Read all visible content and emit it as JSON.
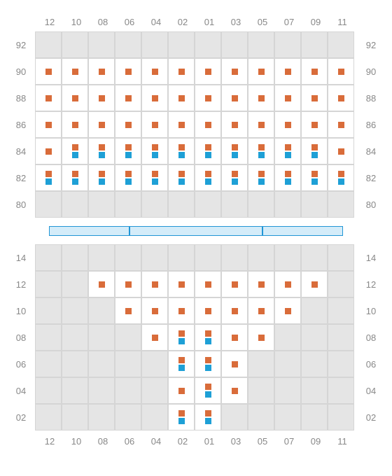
{
  "colors": {
    "orange": "#d96c3a",
    "blue": "#1ea0d6",
    "empty_bg": "#e5e5e5",
    "filled_bg": "#ffffff",
    "border": "#d5d5d5",
    "label": "#888888",
    "stage_fill": "#d4ecf9",
    "stage_border": "#2196d6"
  },
  "col_labels": [
    "12",
    "10",
    "08",
    "06",
    "04",
    "02",
    "01",
    "03",
    "05",
    "07",
    "09",
    "11"
  ],
  "upper": {
    "row_labels": [
      "92",
      "90",
      "88",
      "86",
      "84",
      "82",
      "80"
    ],
    "rows": [
      [
        {
          "e": 1
        },
        {
          "e": 1
        },
        {
          "e": 1
        },
        {
          "e": 1
        },
        {
          "e": 1
        },
        {
          "e": 1
        },
        {
          "e": 1
        },
        {
          "e": 1
        },
        {
          "e": 1
        },
        {
          "e": 1
        },
        {
          "e": 1
        },
        {
          "e": 1
        }
      ],
      [
        {
          "m": [
            "o"
          ]
        },
        {
          "m": [
            "o"
          ]
        },
        {
          "m": [
            "o"
          ]
        },
        {
          "m": [
            "o"
          ]
        },
        {
          "m": [
            "o"
          ]
        },
        {
          "m": [
            "o"
          ]
        },
        {
          "m": [
            "o"
          ]
        },
        {
          "m": [
            "o"
          ]
        },
        {
          "m": [
            "o"
          ]
        },
        {
          "m": [
            "o"
          ]
        },
        {
          "m": [
            "o"
          ]
        },
        {
          "m": [
            "o"
          ]
        }
      ],
      [
        {
          "m": [
            "o"
          ]
        },
        {
          "m": [
            "o"
          ]
        },
        {
          "m": [
            "o"
          ]
        },
        {
          "m": [
            "o"
          ]
        },
        {
          "m": [
            "o"
          ]
        },
        {
          "m": [
            "o"
          ]
        },
        {
          "m": [
            "o"
          ]
        },
        {
          "m": [
            "o"
          ]
        },
        {
          "m": [
            "o"
          ]
        },
        {
          "m": [
            "o"
          ]
        },
        {
          "m": [
            "o"
          ]
        },
        {
          "m": [
            "o"
          ]
        }
      ],
      [
        {
          "m": [
            "o"
          ]
        },
        {
          "m": [
            "o"
          ]
        },
        {
          "m": [
            "o"
          ]
        },
        {
          "m": [
            "o"
          ]
        },
        {
          "m": [
            "o"
          ]
        },
        {
          "m": [
            "o"
          ]
        },
        {
          "m": [
            "o"
          ]
        },
        {
          "m": [
            "o"
          ]
        },
        {
          "m": [
            "o"
          ]
        },
        {
          "m": [
            "o"
          ]
        },
        {
          "m": [
            "o"
          ]
        },
        {
          "m": [
            "o"
          ]
        }
      ],
      [
        {
          "m": [
            "o"
          ]
        },
        {
          "m": [
            "o",
            "b"
          ]
        },
        {
          "m": [
            "o",
            "b"
          ]
        },
        {
          "m": [
            "o",
            "b"
          ]
        },
        {
          "m": [
            "o",
            "b"
          ]
        },
        {
          "m": [
            "o",
            "b"
          ]
        },
        {
          "m": [
            "o",
            "b"
          ]
        },
        {
          "m": [
            "o",
            "b"
          ]
        },
        {
          "m": [
            "o",
            "b"
          ]
        },
        {
          "m": [
            "o",
            "b"
          ]
        },
        {
          "m": [
            "o",
            "b"
          ]
        },
        {
          "m": [
            "o"
          ]
        }
      ],
      [
        {
          "m": [
            "o",
            "b"
          ]
        },
        {
          "m": [
            "o",
            "b"
          ]
        },
        {
          "m": [
            "o",
            "b"
          ]
        },
        {
          "m": [
            "o",
            "b"
          ]
        },
        {
          "m": [
            "o",
            "b"
          ]
        },
        {
          "m": [
            "o",
            "b"
          ]
        },
        {
          "m": [
            "o",
            "b"
          ]
        },
        {
          "m": [
            "o",
            "b"
          ]
        },
        {
          "m": [
            "o",
            "b"
          ]
        },
        {
          "m": [
            "o",
            "b"
          ]
        },
        {
          "m": [
            "o",
            "b"
          ]
        },
        {
          "m": [
            "o",
            "b"
          ]
        }
      ],
      [
        {
          "e": 1
        },
        {
          "e": 1
        },
        {
          "e": 1
        },
        {
          "e": 1
        },
        {
          "e": 1
        },
        {
          "e": 1
        },
        {
          "e": 1
        },
        {
          "e": 1
        },
        {
          "e": 1
        },
        {
          "e": 1
        },
        {
          "e": 1
        },
        {
          "e": 1
        }
      ]
    ]
  },
  "stage": {
    "segments": [
      115,
      190,
      115
    ]
  },
  "lower": {
    "row_labels": [
      "14",
      "12",
      "10",
      "08",
      "06",
      "04",
      "02"
    ],
    "rows": [
      [
        {
          "e": 1
        },
        {
          "e": 1
        },
        {
          "e": 1
        },
        {
          "e": 1
        },
        {
          "e": 1
        },
        {
          "e": 1
        },
        {
          "e": 1
        },
        {
          "e": 1
        },
        {
          "e": 1
        },
        {
          "e": 1
        },
        {
          "e": 1
        },
        {
          "e": 1
        }
      ],
      [
        {
          "e": 1
        },
        {
          "e": 1
        },
        {
          "m": [
            "o"
          ]
        },
        {
          "m": [
            "o"
          ]
        },
        {
          "m": [
            "o"
          ]
        },
        {
          "m": [
            "o"
          ]
        },
        {
          "m": [
            "o"
          ]
        },
        {
          "m": [
            "o"
          ]
        },
        {
          "m": [
            "o"
          ]
        },
        {
          "m": [
            "o"
          ]
        },
        {
          "m": [
            "o"
          ]
        },
        {
          "e": 1
        }
      ],
      [
        {
          "e": 1
        },
        {
          "e": 1
        },
        {
          "e": 1
        },
        {
          "m": [
            "o"
          ]
        },
        {
          "m": [
            "o"
          ]
        },
        {
          "m": [
            "o"
          ]
        },
        {
          "m": [
            "o"
          ]
        },
        {
          "m": [
            "o"
          ]
        },
        {
          "m": [
            "o"
          ]
        },
        {
          "m": [
            "o"
          ]
        },
        {
          "e": 1
        },
        {
          "e": 1
        }
      ],
      [
        {
          "e": 1
        },
        {
          "e": 1
        },
        {
          "e": 1
        },
        {
          "e": 1
        },
        {
          "m": [
            "o"
          ]
        },
        {
          "m": [
            "o",
            "b"
          ]
        },
        {
          "m": [
            "o",
            "b"
          ]
        },
        {
          "m": [
            "o"
          ]
        },
        {
          "m": [
            "o"
          ]
        },
        {
          "e": 1
        },
        {
          "e": 1
        },
        {
          "e": 1
        }
      ],
      [
        {
          "e": 1
        },
        {
          "e": 1
        },
        {
          "e": 1
        },
        {
          "e": 1
        },
        {
          "e": 1
        },
        {
          "m": [
            "o",
            "b"
          ]
        },
        {
          "m": [
            "o",
            "b"
          ]
        },
        {
          "m": [
            "o"
          ]
        },
        {
          "e": 1
        },
        {
          "e": 1
        },
        {
          "e": 1
        },
        {
          "e": 1
        }
      ],
      [
        {
          "e": 1
        },
        {
          "e": 1
        },
        {
          "e": 1
        },
        {
          "e": 1
        },
        {
          "e": 1
        },
        {
          "m": [
            "o"
          ]
        },
        {
          "m": [
            "o",
            "b"
          ]
        },
        {
          "m": [
            "o"
          ]
        },
        {
          "e": 1
        },
        {
          "e": 1
        },
        {
          "e": 1
        },
        {
          "e": 1
        }
      ],
      [
        {
          "e": 1
        },
        {
          "e": 1
        },
        {
          "e": 1
        },
        {
          "e": 1
        },
        {
          "e": 1
        },
        {
          "m": [
            "o",
            "b"
          ]
        },
        {
          "m": [
            "o",
            "b"
          ]
        },
        {
          "e": 1
        },
        {
          "e": 1
        },
        {
          "e": 1
        },
        {
          "e": 1
        },
        {
          "e": 1
        }
      ]
    ]
  }
}
